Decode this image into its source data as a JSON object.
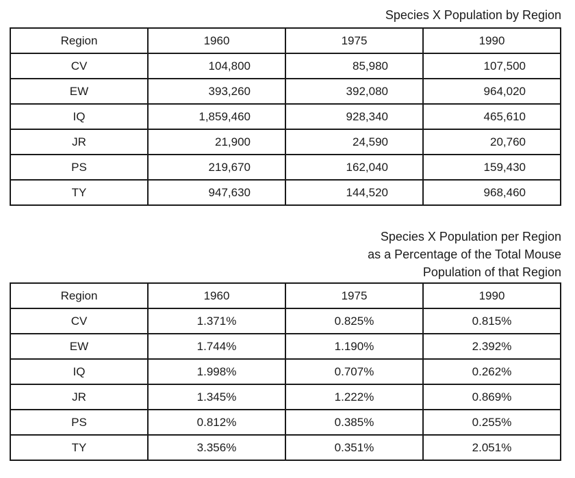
{
  "page": {
    "background": "#ffffff",
    "text_color": "#1a1a1a",
    "border_color": "#1a1a1a"
  },
  "population_table": {
    "title": "Species X Population by Region",
    "columns": [
      "Region",
      "1960",
      "1975",
      "1990"
    ],
    "rows": [
      {
        "region": "CV",
        "values": [
          "104,800",
          "85,980",
          "107,500"
        ]
      },
      {
        "region": "EW",
        "values": [
          "393,260",
          "392,080",
          "964,020"
        ]
      },
      {
        "region": "IQ",
        "values": [
          "1,859,460",
          "928,340",
          "465,610"
        ]
      },
      {
        "region": "JR",
        "values": [
          "21,900",
          "24,590",
          "20,760"
        ]
      },
      {
        "region": "PS",
        "values": [
          "219,670",
          "162,040",
          "159,430"
        ]
      },
      {
        "region": "TY",
        "values": [
          "947,630",
          "144,520",
          "968,460"
        ]
      }
    ]
  },
  "percentage_table": {
    "title_lines": [
      "Species X Population per Region",
      "as a Percentage of the Total Mouse",
      "Population of that Region"
    ],
    "columns": [
      "Region",
      "1960",
      "1975",
      "1990"
    ],
    "rows": [
      {
        "region": "CV",
        "values": [
          "1.371%",
          "0.825%",
          "0.815%"
        ]
      },
      {
        "region": "EW",
        "values": [
          "1.744%",
          "1.190%",
          "2.392%"
        ]
      },
      {
        "region": "IQ",
        "values": [
          "1.998%",
          "0.707%",
          "0.262%"
        ]
      },
      {
        "region": "JR",
        "values": [
          "1.345%",
          "1.222%",
          "0.869%"
        ]
      },
      {
        "region": "PS",
        "values": [
          "0.812%",
          "0.385%",
          "0.255%"
        ]
      },
      {
        "region": "TY",
        "values": [
          "3.356%",
          "0.351%",
          "2.051%"
        ]
      }
    ]
  }
}
